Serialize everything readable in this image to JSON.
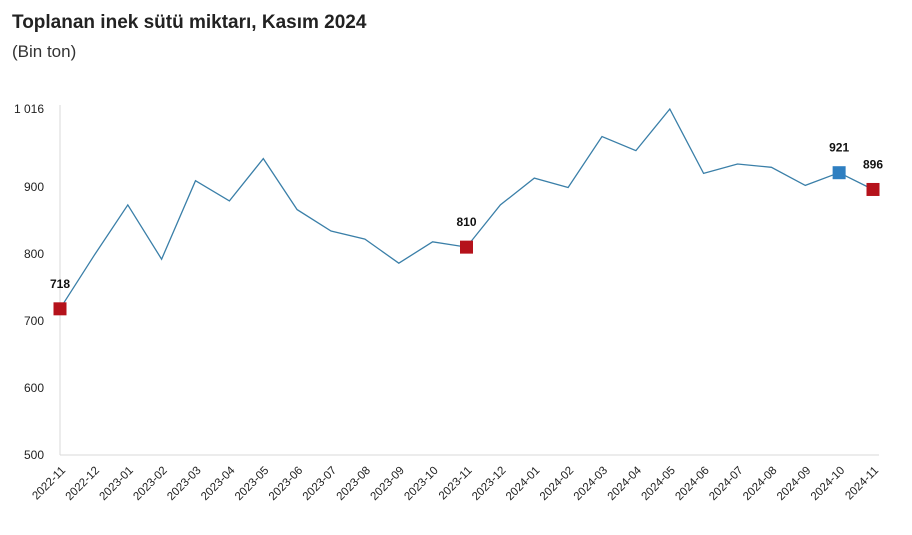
{
  "chart_data": {
    "type": "line",
    "title": "Toplanan inek sütü miktarı, Kasım 2024",
    "subtitle": "(Bin ton)",
    "xlabel": "",
    "ylabel": "",
    "ylim": [
      500,
      1016
    ],
    "yticks": [
      "500",
      "600",
      "700",
      "800",
      "900",
      "1 016"
    ],
    "ytick_values": [
      500,
      600,
      700,
      800,
      900,
      1016
    ],
    "grid": false,
    "categories": [
      "2022-11",
      "2022-12",
      "2023-01",
      "2023-02",
      "2023-03",
      "2023-04",
      "2023-05",
      "2023-06",
      "2023-07",
      "2023-08",
      "2023-09",
      "2023-10",
      "2023-11",
      "2023-12",
      "2024-01",
      "2024-02",
      "2024-03",
      "2024-04",
      "2024-05",
      "2024-06",
      "2024-07",
      "2024-08",
      "2024-09",
      "2024-10",
      "2024-11"
    ],
    "series": [
      {
        "values": [
          718,
          797,
          873,
          792,
          909,
          879,
          942,
          866,
          834,
          822,
          786,
          818,
          810,
          873,
          913,
          899,
          975,
          954,
          1016,
          920,
          934,
          929,
          902,
          921,
          896
        ]
      }
    ],
    "highlights": [
      {
        "index": 0,
        "label": "718",
        "color": "#b5121b"
      },
      {
        "index": 12,
        "label": "810",
        "color": "#b5121b"
      },
      {
        "index": 23,
        "label": "921",
        "color": "#2e7fc1"
      },
      {
        "index": 24,
        "label": "896",
        "color": "#b5121b"
      }
    ],
    "line_color": "#3a7fa8"
  }
}
